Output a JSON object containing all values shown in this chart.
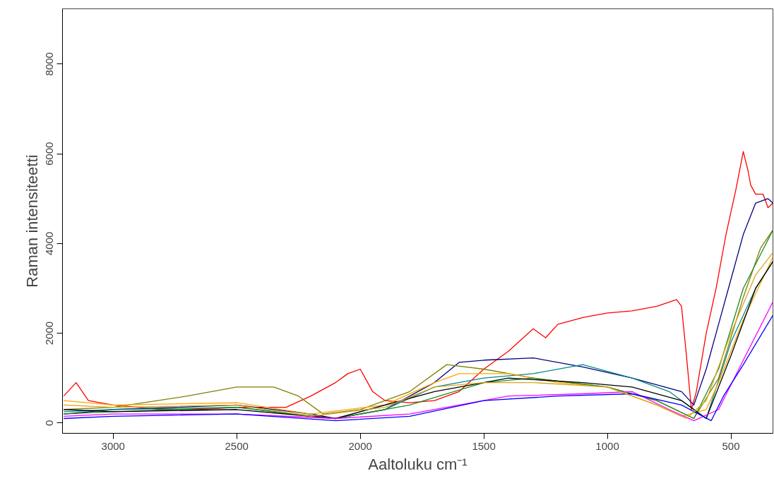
{
  "chart_data": {
    "type": "line",
    "xlabel": "Aaltoluku cm⁻¹",
    "ylabel": "Raman intensiteetti",
    "xlim": [
      3205,
      330
    ],
    "ylim": [
      -230,
      9230
    ],
    "xticks": [
      3000,
      2500,
      2000,
      1500,
      1000,
      500
    ],
    "yticks": [
      0,
      2000,
      4000,
      6000,
      8000
    ],
    "grid": false,
    "marker": "none",
    "line_style": "solid",
    "series": [
      {
        "color": "#ff0000",
        "x": [
          3200,
          3150,
          3100,
          3000,
          2900,
          2800,
          2650,
          2500,
          2300,
          2200,
          2150,
          2100,
          2050,
          2000,
          1970,
          1950,
          1900,
          1800,
          1700,
          1600,
          1500,
          1450,
          1400,
          1300,
          1250,
          1200,
          1100,
          1000,
          900,
          800,
          720,
          700,
          680,
          660,
          640,
          600,
          560,
          520,
          480,
          450,
          430,
          420,
          400,
          370,
          350,
          330
        ],
        "values": [
          600,
          900,
          500,
          400,
          350,
          300,
          300,
          350,
          350,
          600,
          750,
          900,
          1100,
          1200,
          900,
          700,
          500,
          450,
          500,
          700,
          1200,
          1400,
          1600,
          2100,
          1900,
          2200,
          2350,
          2450,
          2500,
          2600,
          2750,
          2600,
          1500,
          300,
          700,
          2000,
          3000,
          4200,
          5200,
          6050,
          5600,
          5300,
          5100,
          5100,
          4800,
          4900
        ]
      },
      {
        "color": "#000080",
        "x": [
          3200,
          3000,
          2500,
          2200,
          2100,
          1900,
          1700,
          1600,
          1500,
          1300,
          1100,
          900,
          700,
          650,
          600,
          550,
          500,
          450,
          400,
          350,
          330
        ],
        "values": [
          200,
          300,
          400,
          200,
          100,
          300,
          900,
          1350,
          1400,
          1450,
          1250,
          1000,
          700,
          400,
          1200,
          2200,
          3200,
          4200,
          4900,
          5000,
          4900
        ]
      },
      {
        "color": "#008b8b",
        "x": [
          3200,
          3000,
          2500,
          2200,
          2100,
          1900,
          1700,
          1500,
          1300,
          1100,
          900,
          750,
          600,
          500,
          400,
          330
        ],
        "values": [
          250,
          300,
          350,
          150,
          100,
          300,
          800,
          1000,
          1100,
          1300,
          1000,
          700,
          100,
          1800,
          3000,
          3600
        ]
      },
      {
        "color": "#808000",
        "x": [
          3200,
          3000,
          2700,
          2500,
          2350,
          2250,
          2150,
          2000,
          1800,
          1650,
          1500,
          1300,
          1000,
          800,
          650,
          550,
          450,
          380,
          330
        ],
        "values": [
          300,
          350,
          600,
          800,
          800,
          600,
          200,
          300,
          700,
          1300,
          1200,
          1000,
          800,
          500,
          100,
          1000,
          2800,
          3900,
          4300
        ]
      },
      {
        "color": "#ffa500",
        "x": [
          3200,
          3000,
          2500,
          2200,
          1900,
          1700,
          1600,
          1400,
          1200,
          1000,
          800,
          700,
          600,
          550,
          450,
          330
        ],
        "values": [
          500,
          400,
          450,
          200,
          400,
          900,
          1100,
          1100,
          900,
          800,
          400,
          150,
          300,
          900,
          2300,
          3700
        ]
      },
      {
        "color": "#228b22",
        "x": [
          3200,
          3000,
          2500,
          2100,
          1800,
          1500,
          1300,
          1000,
          800,
          650,
          550,
          450,
          330
        ],
        "values": [
          200,
          250,
          350,
          100,
          400,
          900,
          1000,
          800,
          500,
          100,
          1200,
          3000,
          4300
        ]
      },
      {
        "color": "#000000",
        "x": [
          3200,
          3000,
          2500,
          2100,
          1700,
          1400,
          1100,
          900,
          700,
          600,
          500,
          400,
          330
        ],
        "values": [
          300,
          250,
          300,
          100,
          700,
          1000,
          900,
          800,
          500,
          100,
          1500,
          3000,
          3600
        ]
      },
      {
        "color": "#ff00ff",
        "x": [
          3200,
          3000,
          2500,
          2100,
          1800,
          1600,
          1400,
          1100,
          900,
          750,
          650,
          550,
          450,
          330
        ],
        "values": [
          150,
          200,
          200,
          100,
          200,
          400,
          600,
          650,
          700,
          300,
          50,
          300,
          1400,
          2700
        ]
      },
      {
        "color": "#0000ff",
        "x": [
          3200,
          3000,
          2500,
          2100,
          1800,
          1500,
          1200,
          900,
          700,
          580,
          530,
          450,
          330
        ],
        "values": [
          100,
          150,
          200,
          50,
          150,
          500,
          600,
          650,
          400,
          50,
          600,
          1300,
          2400
        ]
      },
      {
        "color": "#daa520",
        "x": [
          3200,
          3000,
          2500,
          2200,
          1900,
          1700,
          1500,
          1300,
          1000,
          800,
          680,
          600,
          500,
          400,
          330
        ],
        "values": [
          400,
          350,
          400,
          150,
          350,
          800,
          900,
          900,
          800,
          400,
          100,
          500,
          2000,
          3300,
          3800
        ]
      }
    ]
  }
}
